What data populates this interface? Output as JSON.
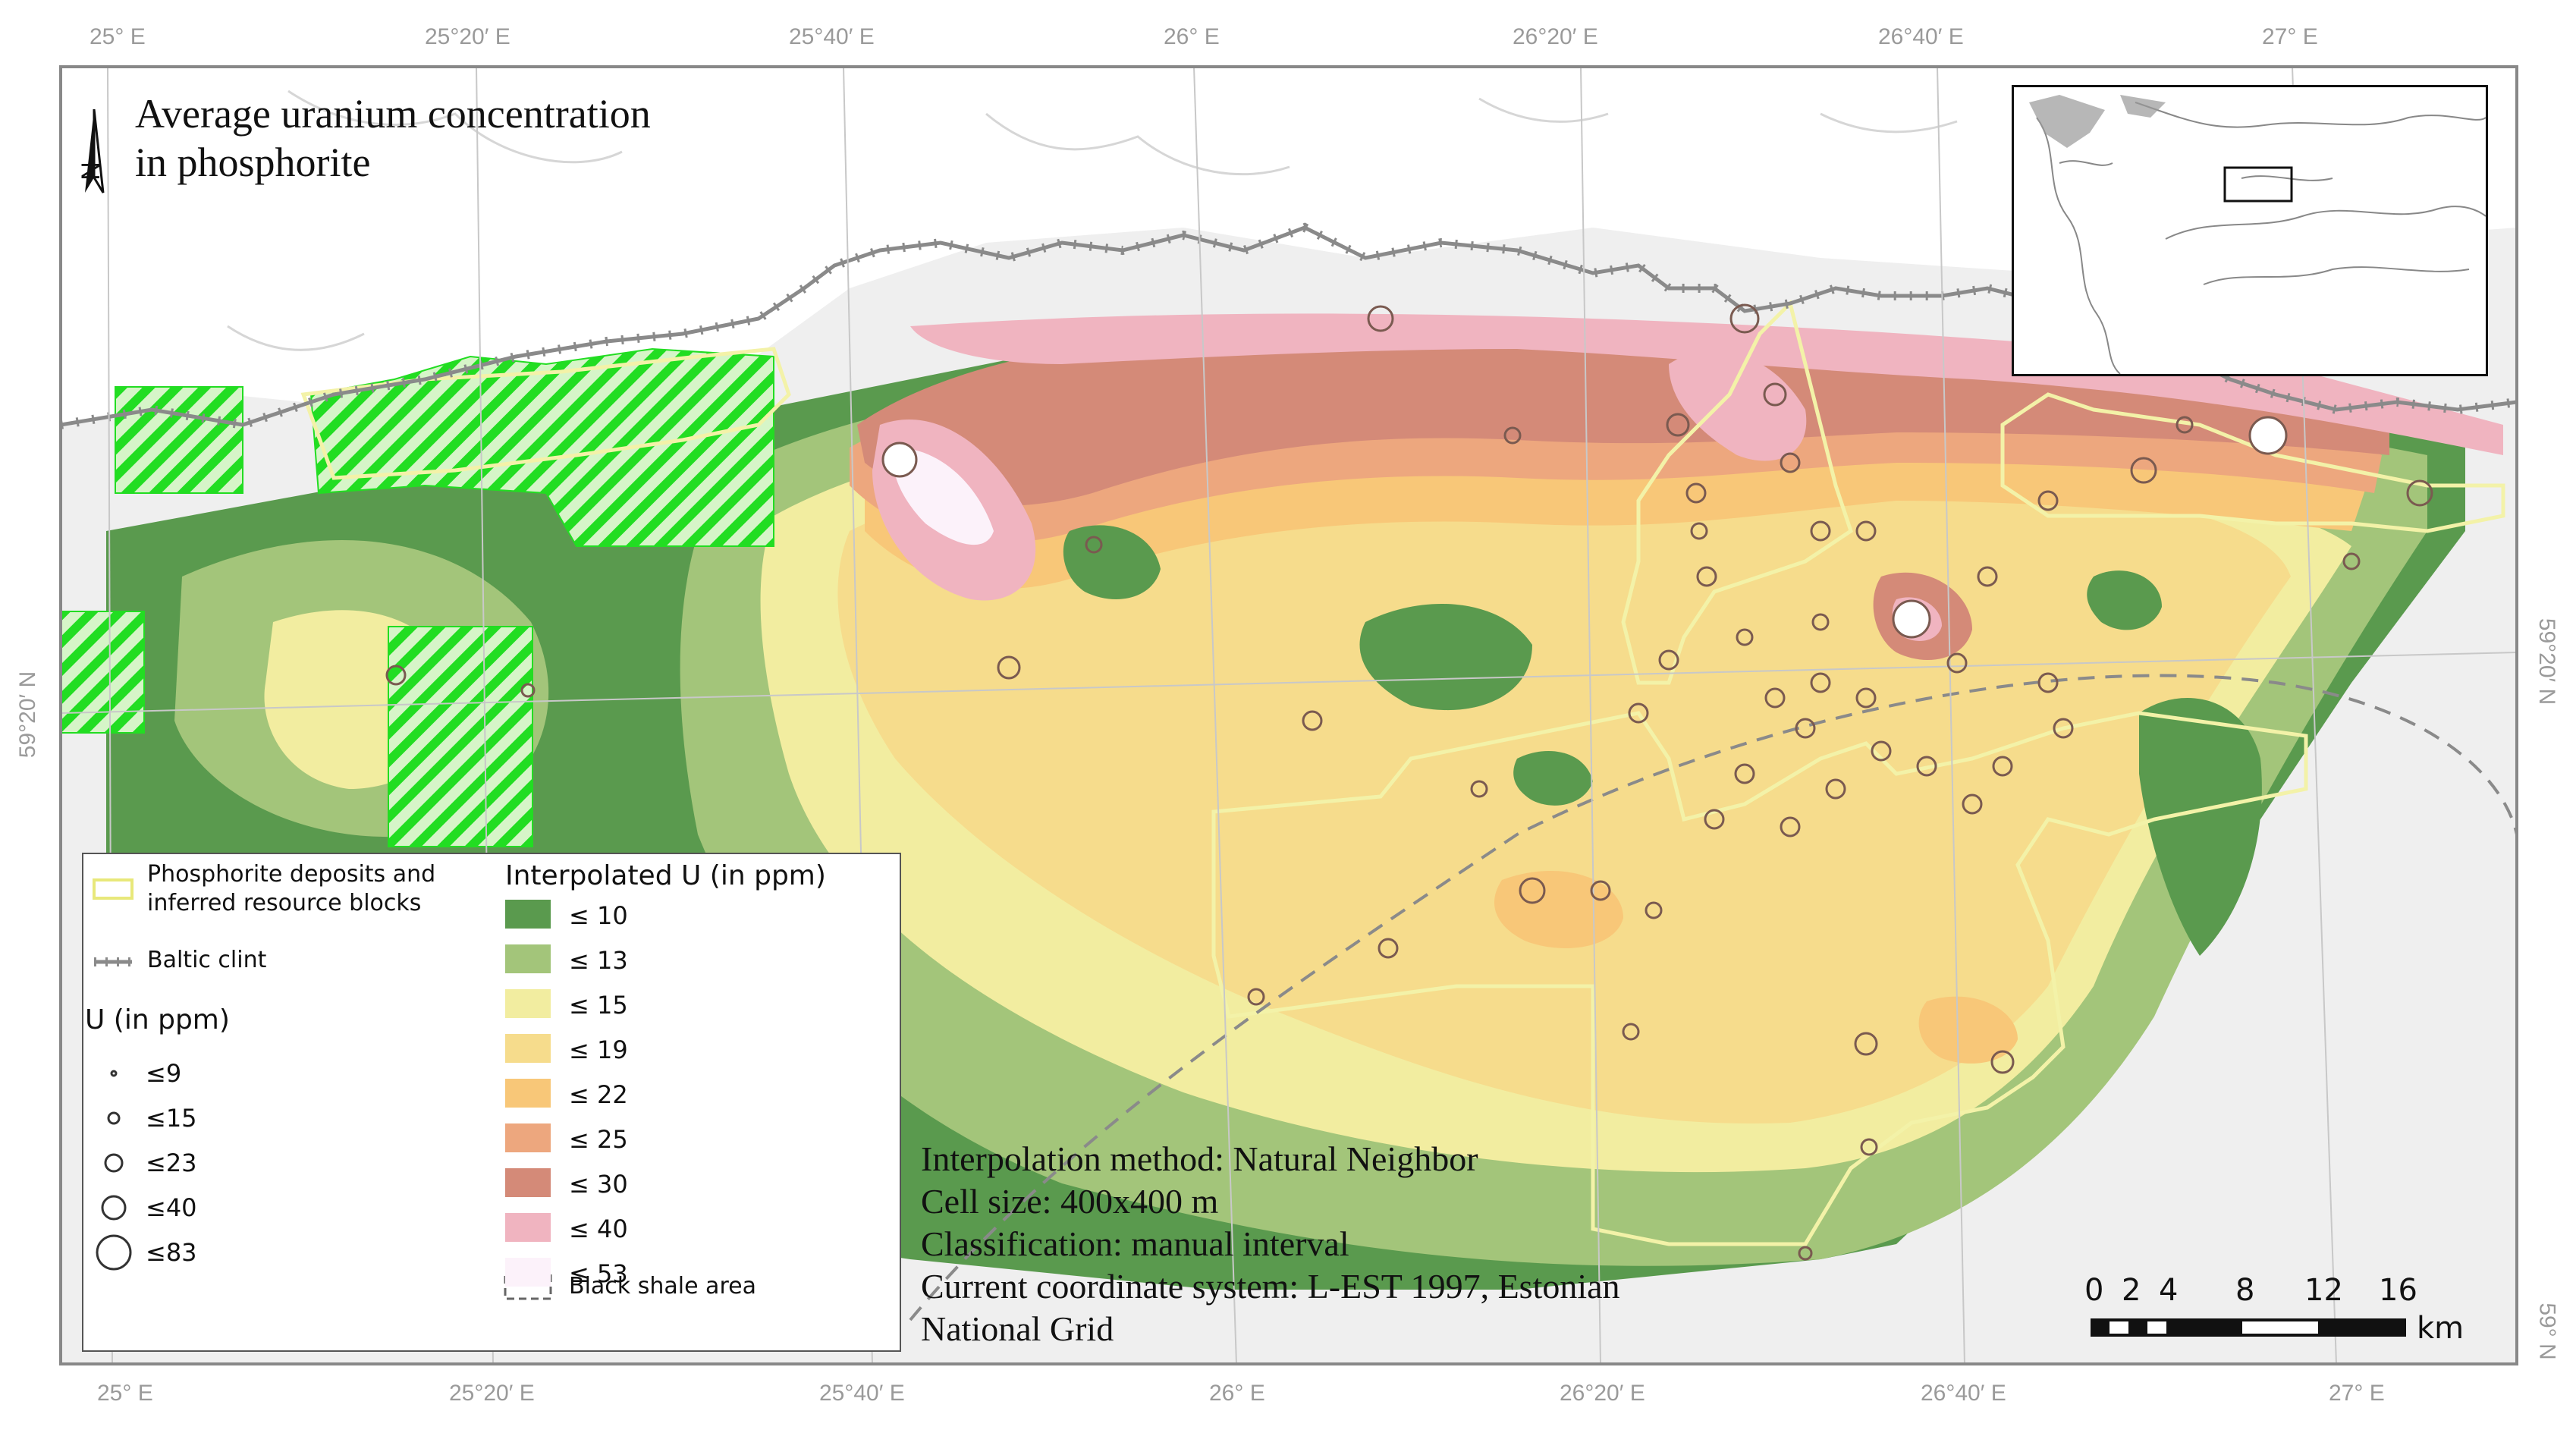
{
  "map": {
    "title_line1": "Average uranium concentration",
    "title_line2": "in phosphorite",
    "grid_labels_top": [
      "25° E",
      "25°20′ E",
      "25°40′ E",
      "26° E",
      "26°20′ E",
      "26°40′ E",
      "27° E"
    ],
    "grid_labels_bottom": [
      "25° E",
      "25°20′ E",
      "25°40′ E",
      "26° E",
      "26°20′ E",
      "26°40′ E",
      "27° E"
    ],
    "grid_labels_left": [
      "59°20′ N"
    ],
    "grid_labels_right": [
      "59°20′ N",
      "59° N"
    ],
    "north_arrow_label": "N"
  },
  "legend": {
    "deposits_label_line1": "Phosphorite deposits and",
    "deposits_label_line2": "inferred resource blocks",
    "clint_label": "Baltic clint",
    "u_title": "U (in ppm)",
    "u_classes": [
      "≤9",
      "≤15",
      "≤23",
      "≤40",
      "≤83"
    ],
    "interp_title": "Interpolated U (in ppm)",
    "interp_classes": [
      {
        "label": "≤ 10",
        "color": "#5a9a4e"
      },
      {
        "label": "≤ 13",
        "color": "#a3c57a"
      },
      {
        "label": "≤ 15",
        "color": "#f2eda0"
      },
      {
        "label": "≤ 19",
        "color": "#f6dc8c"
      },
      {
        "label": "≤ 22",
        "color": "#f8c778"
      },
      {
        "label": "≤ 25",
        "color": "#eda77e"
      },
      {
        "label": "≤ 30",
        "color": "#d48a78"
      },
      {
        "label": "≤ 40",
        "color": "#f0b4c0"
      },
      {
        "label": "≤ 53",
        "color": "#fcf2fa"
      }
    ],
    "shale_label": "Black shale area"
  },
  "info": {
    "line1": "Interpolation method: Natural Neighbor",
    "line2": "Cell size: 400x400 m",
    "line3": "Classification: manual interval",
    "line4": "Current coordinate system: L-EST 1997, Estonian",
    "line5": "National Grid"
  },
  "scale_bar": {
    "ticks": [
      "0",
      "2",
      "4",
      "8",
      "12",
      "16"
    ],
    "unit": "km"
  },
  "colors": {
    "deposit_outline": "#f3f2a8",
    "clint": "#8a8a8a",
    "hatch": "#22dd22",
    "land": "#efefef",
    "sea": "#ffffff"
  }
}
